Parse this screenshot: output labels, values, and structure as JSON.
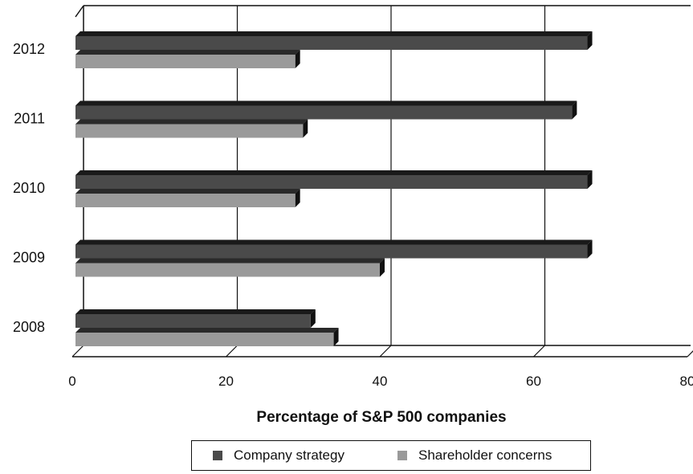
{
  "chart_data": {
    "type": "bar",
    "orientation": "horizontal",
    "style": "3d",
    "categories": [
      "2012",
      "2011",
      "2010",
      "2009",
      "2008"
    ],
    "series": [
      {
        "name": "Company strategy",
        "values": [
          67,
          65,
          67,
          67,
          31
        ],
        "color": "#4a4a4a"
      },
      {
        "name": "Shareholder concerns",
        "values": [
          29,
          30,
          29,
          40,
          34
        ],
        "color": "#9a9a9a"
      }
    ],
    "xlabel": "Percentage of S&P 500 companies",
    "ylabel": "",
    "xlim": [
      0,
      80
    ],
    "xticks": [
      "0",
      "20",
      "40",
      "60",
      "80"
    ],
    "grid": true,
    "legend_position": "bottom"
  }
}
